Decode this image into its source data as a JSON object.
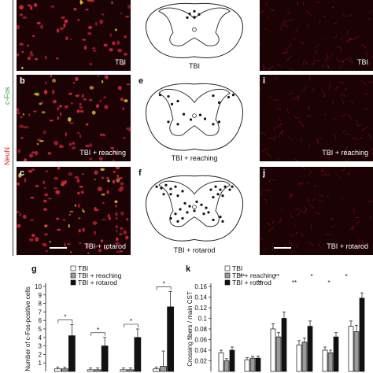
{
  "side_labels": {
    "cfos": "c-Fos",
    "neun": "NeuN"
  },
  "colors": {
    "cfos": "#22aa44",
    "neun": "#dd2222",
    "tissue": "#1a0205",
    "cell": "#d8263a"
  },
  "panels": {
    "a": {
      "letter": "",
      "caption": "TBI"
    },
    "b": {
      "letter": "b",
      "caption": "TBI + reaching"
    },
    "c": {
      "letter": "c",
      "caption": "TBI + rotarod"
    },
    "d": {
      "letter": "",
      "caption": "TBI"
    },
    "e": {
      "letter": "e",
      "caption": "TBI + reaching"
    },
    "f": {
      "letter": "f",
      "caption": "TBI + rotarod"
    },
    "h": {
      "letter": "",
      "caption": "TBI"
    },
    "i": {
      "letter": "i",
      "caption": "TBI + reaching"
    },
    "j": {
      "letter": "j",
      "caption": "TBI + rotarod"
    }
  },
  "chart_data": [
    {
      "panel": "g",
      "type": "bar",
      "ylabel": "Number of c-Fos-positive cells",
      "ylim": [
        0,
        10
      ],
      "yticks": [
        1,
        2,
        3,
        4,
        5,
        6,
        7,
        8,
        9,
        10
      ],
      "legend": [
        "TBI",
        "TBI + reaching",
        "TBI + rotarod"
      ],
      "legend_position": "top-left",
      "series": [
        {
          "name": "TBI",
          "color": "#ffffff",
          "values": [
            0.3,
            0.2,
            0.2,
            0.3
          ]
        },
        {
          "name": "TBI + reaching",
          "color": "#9a9a9a",
          "values": [
            0.3,
            0.2,
            0.2,
            0.6
          ]
        },
        {
          "name": "TBI + rotarod",
          "color": "#111111",
          "values": [
            4.2,
            3.0,
            4.0,
            7.6
          ]
        }
      ],
      "errors": [
        [
          0.2,
          0.2,
          0.2,
          0.2
        ],
        [
          0.2,
          0.2,
          0.2,
          1.8
        ],
        [
          1.3,
          1.0,
          1.0,
          1.8
        ]
      ],
      "significance": [
        {
          "group": 0,
          "label": "*"
        },
        {
          "group": 1,
          "label": "*"
        },
        {
          "group": 2,
          "label": "*"
        },
        {
          "group": 3,
          "label": "*"
        }
      ]
    },
    {
      "panel": "k",
      "type": "bar",
      "ylabel": "Crossing fibers / main CST",
      "ylim": [
        0,
        0.16
      ],
      "yticks": [
        0.02,
        0.04,
        0.06,
        0.08,
        0.1,
        0.12,
        0.14,
        0.16
      ],
      "legend": [
        "TBI",
        "TBI + reaching",
        "TBI + rotarod"
      ],
      "legend_position": "top-left",
      "series": [
        {
          "name": "TBI",
          "color": "#ffffff",
          "values": [
            0.035,
            0.022,
            0.08,
            0.05,
            0.04,
            0.085
          ]
        },
        {
          "name": "TBI + reaching",
          "color": "#9a9a9a",
          "values": [
            0.02,
            0.025,
            0.065,
            0.055,
            0.035,
            0.075
          ]
        },
        {
          "name": "TBI + rotarod",
          "color": "#111111",
          "values": [
            0.04,
            0.025,
            0.1,
            0.085,
            0.065,
            0.138
          ]
        }
      ],
      "errors": [
        [
          0.005,
          0.004,
          0.01,
          0.008,
          0.006,
          0.01
        ],
        [
          0.004,
          0.004,
          0.008,
          0.008,
          0.005,
          0.012
        ],
        [
          0.006,
          0.004,
          0.012,
          0.01,
          0.008,
          0.01
        ]
      ],
      "significance_labels": [
        "**",
        "**",
        "**",
        "**",
        "*",
        "*",
        "*"
      ]
    }
  ],
  "chart_letters": {
    "g": "g",
    "k": "k"
  },
  "cord_dots": {
    "d": [
      [
        0.5,
        0.18
      ],
      [
        0.46,
        0.22
      ],
      [
        0.54,
        0.23
      ],
      [
        0.5,
        0.27
      ],
      [
        0.44,
        0.28
      ]
    ],
    "e": [
      [
        0.21,
        0.2
      ],
      [
        0.28,
        0.22
      ],
      [
        0.31,
        0.32
      ],
      [
        0.36,
        0.28
      ],
      [
        0.66,
        0.21
      ],
      [
        0.71,
        0.3
      ],
      [
        0.79,
        0.23
      ],
      [
        0.83,
        0.2
      ],
      [
        0.41,
        0.45
      ],
      [
        0.47,
        0.52
      ],
      [
        0.55,
        0.46
      ],
      [
        0.59,
        0.51
      ],
      [
        0.36,
        0.58
      ],
      [
        0.28,
        0.55
      ],
      [
        0.66,
        0.58
      ],
      [
        0.71,
        0.55
      ]
    ],
    "f": [
      [
        0.18,
        0.2
      ],
      [
        0.22,
        0.22
      ],
      [
        0.26,
        0.18
      ],
      [
        0.3,
        0.23
      ],
      [
        0.34,
        0.2
      ],
      [
        0.24,
        0.3
      ],
      [
        0.3,
        0.3
      ],
      [
        0.36,
        0.32
      ],
      [
        0.4,
        0.26
      ],
      [
        0.64,
        0.24
      ],
      [
        0.68,
        0.2
      ],
      [
        0.72,
        0.24
      ],
      [
        0.76,
        0.2
      ],
      [
        0.8,
        0.24
      ],
      [
        0.82,
        0.2
      ],
      [
        0.7,
        0.3
      ],
      [
        0.74,
        0.32
      ],
      [
        0.66,
        0.34
      ],
      [
        0.42,
        0.42
      ],
      [
        0.46,
        0.46
      ],
      [
        0.52,
        0.4
      ],
      [
        0.56,
        0.44
      ],
      [
        0.6,
        0.48
      ],
      [
        0.38,
        0.5
      ],
      [
        0.44,
        0.54
      ],
      [
        0.5,
        0.52
      ],
      [
        0.58,
        0.56
      ],
      [
        0.62,
        0.54
      ],
      [
        0.3,
        0.62
      ],
      [
        0.36,
        0.66
      ],
      [
        0.66,
        0.64
      ],
      [
        0.72,
        0.6
      ],
      [
        0.4,
        0.62
      ],
      [
        0.34,
        0.56
      ],
      [
        0.74,
        0.66
      ]
    ]
  }
}
